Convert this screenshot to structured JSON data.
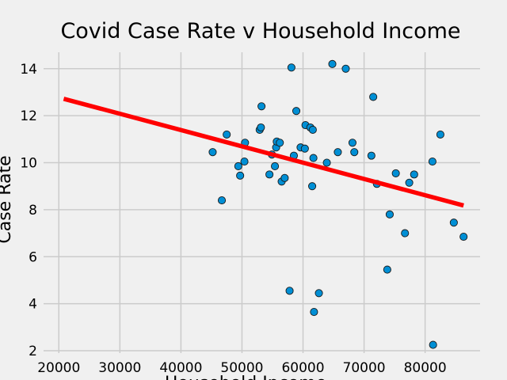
{
  "chart_data": {
    "type": "scatter",
    "title": "Covid Case Rate v Household Income",
    "xlabel": "Household Income",
    "ylabel": "Case Rate",
    "xlim": [
      17500,
      89000
    ],
    "ylim": [
      1.9,
      14.7
    ],
    "xticks": [
      20000,
      30000,
      40000,
      50000,
      60000,
      70000,
      80000
    ],
    "yticks": [
      2,
      4,
      6,
      8,
      10,
      12,
      14
    ],
    "grid": true,
    "colors": {
      "background": "#f0f0f0",
      "grid": "#cbcbcb",
      "points": "#008fd5",
      "point_edge": "#1a1a1a",
      "regression_line": "#ff0000"
    },
    "series": [
      {
        "type": "scatter",
        "points": [
          {
            "x": 45200,
            "y": 10.45
          },
          {
            "x": 46700,
            "y": 8.4
          },
          {
            "x": 47500,
            "y": 11.2
          },
          {
            "x": 49400,
            "y": 9.85
          },
          {
            "x": 49700,
            "y": 9.45
          },
          {
            "x": 50400,
            "y": 10.05
          },
          {
            "x": 50500,
            "y": 10.85
          },
          {
            "x": 52900,
            "y": 11.4
          },
          {
            "x": 53100,
            "y": 11.5
          },
          {
            "x": 53200,
            "y": 12.4
          },
          {
            "x": 54500,
            "y": 9.5
          },
          {
            "x": 54900,
            "y": 10.35
          },
          {
            "x": 55400,
            "y": 9.85
          },
          {
            "x": 55600,
            "y": 10.65
          },
          {
            "x": 55700,
            "y": 10.9
          },
          {
            "x": 56200,
            "y": 10.85
          },
          {
            "x": 56500,
            "y": 9.2
          },
          {
            "x": 57000,
            "y": 9.35
          },
          {
            "x": 57800,
            "y": 4.55
          },
          {
            "x": 58100,
            "y": 14.05
          },
          {
            "x": 58500,
            "y": 10.3
          },
          {
            "x": 58900,
            "y": 12.2
          },
          {
            "x": 59600,
            "y": 10.65
          },
          {
            "x": 60300,
            "y": 10.6
          },
          {
            "x": 60400,
            "y": 11.6
          },
          {
            "x": 61200,
            "y": 11.5
          },
          {
            "x": 61500,
            "y": 9.0
          },
          {
            "x": 61600,
            "y": 11.4
          },
          {
            "x": 61700,
            "y": 10.2
          },
          {
            "x": 61800,
            "y": 3.65
          },
          {
            "x": 62600,
            "y": 4.45
          },
          {
            "x": 63900,
            "y": 10.0
          },
          {
            "x": 64800,
            "y": 14.2
          },
          {
            "x": 65700,
            "y": 10.45
          },
          {
            "x": 67000,
            "y": 14.0
          },
          {
            "x": 68100,
            "y": 10.85
          },
          {
            "x": 68400,
            "y": 10.45
          },
          {
            "x": 71200,
            "y": 10.3
          },
          {
            "x": 71500,
            "y": 12.8
          },
          {
            "x": 72100,
            "y": 9.1
          },
          {
            "x": 73800,
            "y": 5.45
          },
          {
            "x": 74200,
            "y": 7.8
          },
          {
            "x": 75200,
            "y": 9.55
          },
          {
            "x": 76700,
            "y": 7.0
          },
          {
            "x": 77400,
            "y": 9.15
          },
          {
            "x": 78200,
            "y": 9.5
          },
          {
            "x": 81200,
            "y": 10.05
          },
          {
            "x": 81300,
            "y": 2.25
          },
          {
            "x": 82500,
            "y": 11.2
          },
          {
            "x": 84700,
            "y": 7.45
          },
          {
            "x": 86300,
            "y": 6.85
          }
        ]
      },
      {
        "type": "line",
        "points": [
          {
            "x": 20800,
            "y": 12.72
          },
          {
            "x": 86300,
            "y": 8.18
          }
        ]
      }
    ]
  }
}
